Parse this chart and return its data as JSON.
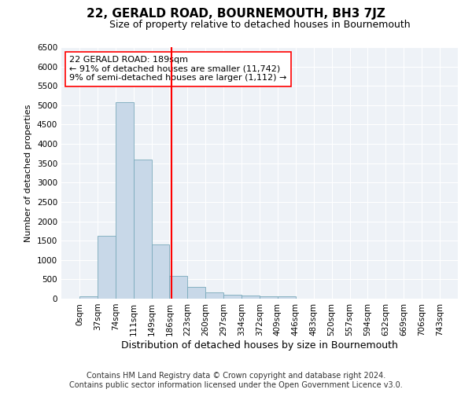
{
  "title": "22, GERALD ROAD, BOURNEMOUTH, BH3 7JZ",
  "subtitle": "Size of property relative to detached houses in Bournemouth",
  "xlabel": "Distribution of detached houses by size in Bournemouth",
  "ylabel": "Number of detached properties",
  "footer_line1": "Contains HM Land Registry data © Crown copyright and database right 2024.",
  "footer_line2": "Contains public sector information licensed under the Open Government Licence v3.0.",
  "bin_labels": [
    "0sqm",
    "37sqm",
    "74sqm",
    "111sqm",
    "149sqm",
    "186sqm",
    "223sqm",
    "260sqm",
    "297sqm",
    "334sqm",
    "372sqm",
    "409sqm",
    "446sqm",
    "483sqm",
    "520sqm",
    "557sqm",
    "594sqm",
    "632sqm",
    "669sqm",
    "706sqm",
    "743sqm"
  ],
  "bar_values": [
    65,
    1630,
    5080,
    3600,
    1410,
    590,
    295,
    155,
    100,
    80,
    60,
    55,
    0,
    0,
    0,
    0,
    0,
    0,
    0,
    0
  ],
  "bar_color": "#c8d8e8",
  "bar_edge_color": "#7aaabb",
  "vline_x": 5.108,
  "vline_color": "red",
  "annotation_text": "22 GERALD ROAD: 189sqm\n← 91% of detached houses are smaller (11,742)\n9% of semi-detached houses are larger (1,112) →",
  "ylim": [
    0,
    6500
  ],
  "yticks": [
    0,
    500,
    1000,
    1500,
    2000,
    2500,
    3000,
    3500,
    4000,
    4500,
    5000,
    5500,
    6000,
    6500
  ],
  "title_fontsize": 11,
  "subtitle_fontsize": 9,
  "xlabel_fontsize": 9,
  "ylabel_fontsize": 8,
  "tick_fontsize": 7.5,
  "annotation_fontsize": 8,
  "footer_fontsize": 7,
  "background_color": "#ffffff",
  "plot_bg_color": "#eef2f7"
}
